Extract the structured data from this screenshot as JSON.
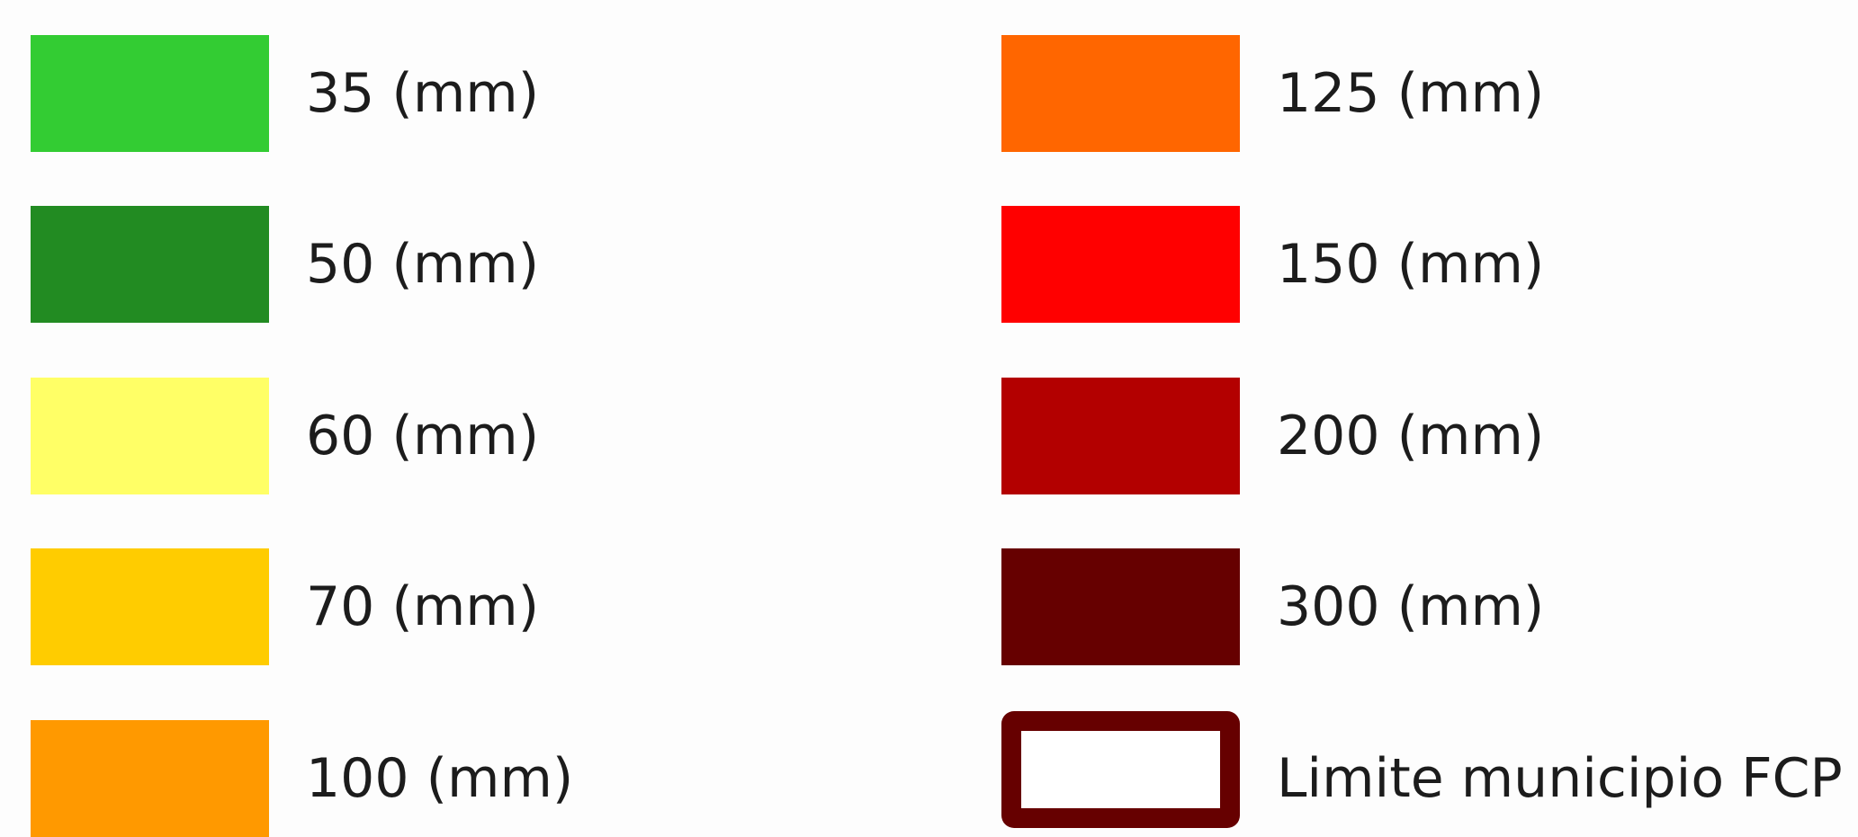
{
  "legend": {
    "left_column": [
      {
        "label": "35 (mm)",
        "color": "#33cc33"
      },
      {
        "label": "50 (mm)",
        "color": "#228b22"
      },
      {
        "label": "60 (mm)",
        "color": "#ffff66"
      },
      {
        "label": "70 (mm)",
        "color": "#ffcc00"
      },
      {
        "label": "100 (mm)",
        "color": "#ff9900"
      }
    ],
    "right_column": [
      {
        "label": "125 (mm)",
        "color": "#ff6600"
      },
      {
        "label": "150 (mm)",
        "color": "#ff0000"
      },
      {
        "label": "200 (mm)",
        "color": "#b30000"
      },
      {
        "label": "300 (mm)",
        "color": "#660000"
      },
      {
        "label": "Limite municipio FCP",
        "color": "#660000",
        "style": "outline"
      }
    ]
  }
}
